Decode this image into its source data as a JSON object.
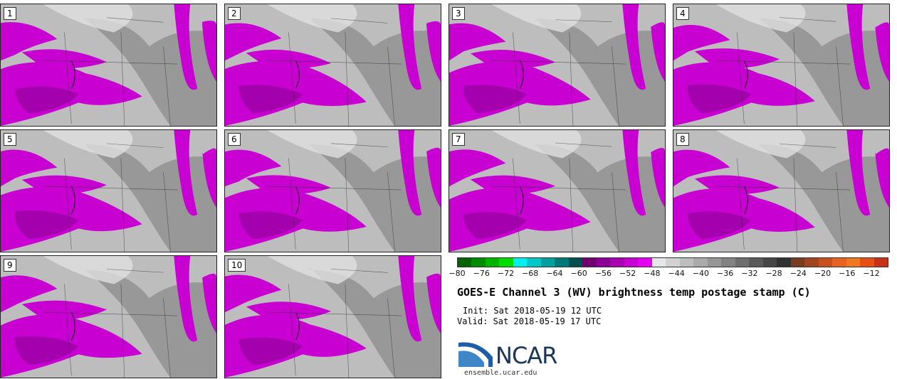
{
  "panels": [
    {
      "label": "1"
    },
    {
      "label": "2"
    },
    {
      "label": "3"
    },
    {
      "label": "4"
    },
    {
      "label": "5"
    },
    {
      "label": "6"
    },
    {
      "label": "7"
    },
    {
      "label": "8"
    },
    {
      "label": "9"
    },
    {
      "label": "10"
    }
  ],
  "colorbar": {
    "colors": [
      "#006400",
      "#008c00",
      "#00b400",
      "#00dc00",
      "#00f0f0",
      "#00c8c8",
      "#00a0a0",
      "#007878",
      "#005050",
      "#6e0070",
      "#8c0096",
      "#aa00b4",
      "#c800d2",
      "#e600f0",
      "#e6e6e6",
      "#d2d2d2",
      "#bebebe",
      "#aaaaaa",
      "#969696",
      "#828282",
      "#6e6e6e",
      "#5a5a5a",
      "#464646",
      "#323232",
      "#783c1e",
      "#a0461e",
      "#c8501e",
      "#e6641e",
      "#f0781e",
      "#e65014",
      "#c83214"
    ],
    "ticks": [
      "−80",
      "−76",
      "−72",
      "−68",
      "−64",
      "−60",
      "−56",
      "−52",
      "−48",
      "−44",
      "−40",
      "−36",
      "−32",
      "−28",
      "−24",
      "−20",
      "−16",
      "−12"
    ]
  },
  "title": "GOES-E Channel 3 (WV) brightness temp postage stamp (C)",
  "init": "Init: Sat 2018-05-19 12 UTC",
  "valid": "Valid: Sat 2018-05-19 17 UTC",
  "logo": {
    "text": "NCAR",
    "site": "ensemble.ucar.edu"
  },
  "colors": {
    "moist": "#c800d2",
    "deep_moist": "#8c0096",
    "dry_light": "#bdbdbd",
    "dry_dark": "#7a7a7a"
  }
}
